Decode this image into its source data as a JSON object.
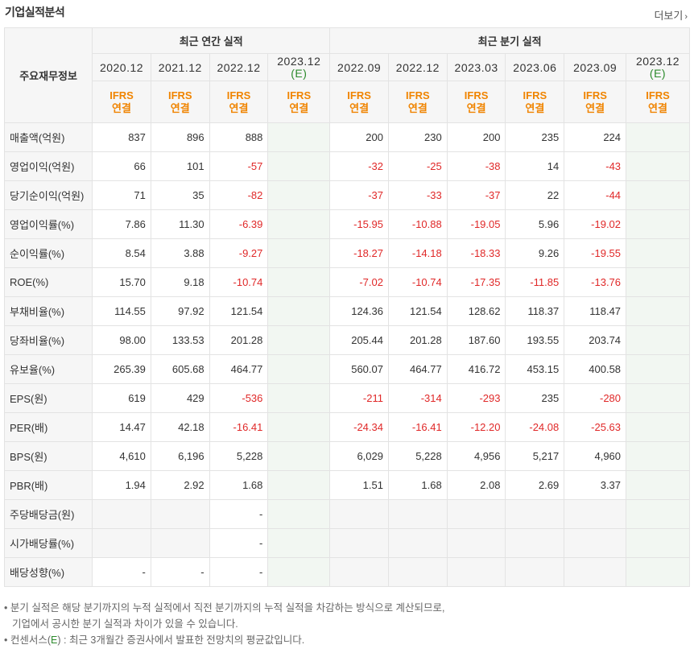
{
  "header": {
    "title": "기업실적분석",
    "more_label": "더보기",
    "more_icon": "chevron-right-icon"
  },
  "table": {
    "label_header": "주요재무정보",
    "group_annual": "최근 연간 실적",
    "group_quarter": "최근 분기 실적",
    "periods": [
      {
        "label": "2020.12",
        "est": false
      },
      {
        "label": "2021.12",
        "est": false
      },
      {
        "label": "2022.12",
        "est": false
      },
      {
        "label": "2023.12",
        "est": true,
        "est_mark": "(E)"
      },
      {
        "label": "2022.09",
        "est": false
      },
      {
        "label": "2022.12",
        "est": false
      },
      {
        "label": "2023.03",
        "est": false
      },
      {
        "label": "2023.06",
        "est": false
      },
      {
        "label": "2023.09",
        "est": false
      },
      {
        "label": "2023.12",
        "est": true,
        "est_mark": "(E)"
      }
    ],
    "standard_top": "IFRS",
    "standard_bottom": "연결",
    "rows": [
      {
        "label": "매출액(억원)",
        "values": [
          "837",
          "896",
          "888",
          "",
          "200",
          "230",
          "200",
          "235",
          "224",
          ""
        ]
      },
      {
        "label": "영업이익(억원)",
        "values": [
          "66",
          "101",
          "-57",
          "",
          "-32",
          "-25",
          "-38",
          "14",
          "-43",
          ""
        ]
      },
      {
        "label": "당기순이익(억원)",
        "values": [
          "71",
          "35",
          "-82",
          "",
          "-37",
          "-33",
          "-37",
          "22",
          "-44",
          ""
        ]
      },
      {
        "label": "영업이익률(%)",
        "values": [
          "7.86",
          "11.30",
          "-6.39",
          "",
          "-15.95",
          "-10.88",
          "-19.05",
          "5.96",
          "-19.02",
          ""
        ]
      },
      {
        "label": "순이익률(%)",
        "values": [
          "8.54",
          "3.88",
          "-9.27",
          "",
          "-18.27",
          "-14.18",
          "-18.33",
          "9.26",
          "-19.55",
          ""
        ]
      },
      {
        "label": "ROE(%)",
        "values": [
          "15.70",
          "9.18",
          "-10.74",
          "",
          "-7.02",
          "-10.74",
          "-17.35",
          "-11.85",
          "-13.76",
          ""
        ]
      },
      {
        "label": "부채비율(%)",
        "values": [
          "114.55",
          "97.92",
          "121.54",
          "",
          "124.36",
          "121.54",
          "128.62",
          "118.37",
          "118.47",
          ""
        ]
      },
      {
        "label": "당좌비율(%)",
        "values": [
          "98.00",
          "133.53",
          "201.28",
          "",
          "205.44",
          "201.28",
          "187.60",
          "193.55",
          "203.74",
          ""
        ]
      },
      {
        "label": "유보율(%)",
        "values": [
          "265.39",
          "605.68",
          "464.77",
          "",
          "560.07",
          "464.77",
          "416.72",
          "453.15",
          "400.58",
          ""
        ]
      },
      {
        "label": "EPS(원)",
        "values": [
          "619",
          "429",
          "-536",
          "",
          "-211",
          "-314",
          "-293",
          "235",
          "-280",
          ""
        ]
      },
      {
        "label": "PER(배)",
        "values": [
          "14.47",
          "42.18",
          "-16.41",
          "",
          "-24.34",
          "-16.41",
          "-12.20",
          "-24.08",
          "-25.63",
          ""
        ]
      },
      {
        "label": "BPS(원)",
        "values": [
          "4,610",
          "6,196",
          "5,228",
          "",
          "6,029",
          "5,228",
          "4,956",
          "5,217",
          "4,960",
          ""
        ]
      },
      {
        "label": "PBR(배)",
        "values": [
          "1.94",
          "2.92",
          "1.68",
          "",
          "1.51",
          "1.68",
          "2.08",
          "2.69",
          "3.37",
          ""
        ]
      },
      {
        "label": "주당배당금(원)",
        "values": [
          "",
          "",
          "-",
          "",
          "",
          "",
          "",
          "",
          "",
          ""
        ]
      },
      {
        "label": "시가배당률(%)",
        "values": [
          "",
          "",
          "-",
          "",
          "",
          "",
          "",
          "",
          "",
          ""
        ]
      },
      {
        "label": "배당성향(%)",
        "values": [
          "-",
          "-",
          "-",
          "",
          "",
          "",
          "",
          "",
          "",
          ""
        ]
      }
    ]
  },
  "notes": {
    "line1": "분기 실적은 해당 분기까지의 누적 실적에서 직전 분기까지의 누적 실적을 차감하는 방식으로 계산되므로,",
    "line2": "기업에서 공시한 분기 실적과 차이가 있을 수 있습니다.",
    "line3_pre": "컨센서스(",
    "line3_e": "E",
    "line3_post": ") : 최근 3개월간 증권사에서 발표한 전망치의 평균값입니다."
  },
  "colors": {
    "negative": "#e02828",
    "estimate": "#2c8a2c",
    "ifrs": "#f08400",
    "header_bg": "#f6f6f6",
    "estimate_bg": "#f2f7f2"
  }
}
